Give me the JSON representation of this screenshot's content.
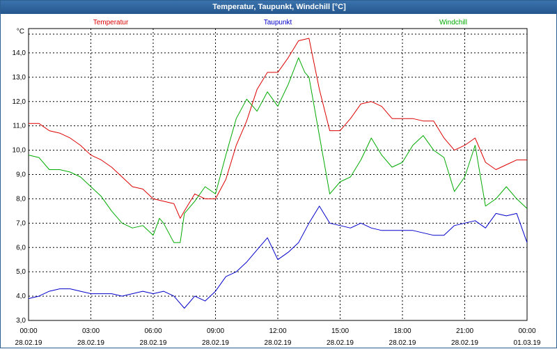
{
  "window": {
    "title": "Temperatur, Taupunkt, Windchill [°C]"
  },
  "colors": {
    "temperatur": "#dd0000",
    "taupunkt": "#0000cc",
    "windchill": "#00aa00"
  },
  "chart_data": {
    "type": "line",
    "title": "Temperatur, Taupunkt, Windchill [°C]",
    "ylabel": "°C",
    "xlabel": "",
    "ylim": [
      3.0,
      15.0
    ],
    "xlim": [
      0,
      24
    ],
    "grid": true,
    "legend_position": "top",
    "yticks": [
      "3,0",
      "4,0",
      "5,0",
      "6,0",
      "7,0",
      "8,0",
      "9,0",
      "10,0",
      "11,0",
      "12,0",
      "13,0",
      "14,0"
    ],
    "xticks": [
      {
        "time": "00:00",
        "date": "28.02.19"
      },
      {
        "time": "03:00",
        "date": "28.02.19"
      },
      {
        "time": "06:00",
        "date": "28.02.19"
      },
      {
        "time": "09:00",
        "date": "28.02.19"
      },
      {
        "time": "12:00",
        "date": "28.02.19"
      },
      {
        "time": "15:00",
        "date": "28.02.19"
      },
      {
        "time": "18:00",
        "date": "28.02.19"
      },
      {
        "time": "21:00",
        "date": "28.02.19"
      },
      {
        "time": "00:00",
        "date": "01.03.19"
      }
    ],
    "series": [
      {
        "name": "Temperatur",
        "x": [
          0,
          0.5,
          1,
          1.5,
          2,
          2.5,
          3,
          3.5,
          4,
          4.5,
          5,
          5.5,
          6,
          6.5,
          7,
          7.3,
          7.5,
          8,
          8.5,
          9,
          9.5,
          10,
          10.5,
          11,
          11.5,
          12,
          12.5,
          13,
          13.5,
          14,
          14.5,
          15,
          15.5,
          16,
          16.5,
          17,
          17.5,
          18,
          18.5,
          19,
          19.5,
          20,
          20.5,
          21,
          21.5,
          22,
          22.5,
          23,
          23.5,
          24
        ],
        "values": [
          11.1,
          11.1,
          10.8,
          10.7,
          10.5,
          10.2,
          9.8,
          9.6,
          9.3,
          8.9,
          8.5,
          8.4,
          8.0,
          7.9,
          7.8,
          7.2,
          7.5,
          8.2,
          8.0,
          8.0,
          8.8,
          10.2,
          11.2,
          12.5,
          13.2,
          13.2,
          13.8,
          14.5,
          14.6,
          12.5,
          10.8,
          10.8,
          11.3,
          11.9,
          12.0,
          11.8,
          11.3,
          11.3,
          11.3,
          11.2,
          11.2,
          10.5,
          10.0,
          10.2,
          10.5,
          9.5,
          9.2,
          9.4,
          9.6,
          9.6
        ]
      },
      {
        "name": "Taupunkt",
        "x": [
          0,
          0.5,
          1,
          1.5,
          2,
          2.5,
          3,
          3.5,
          4,
          4.5,
          5,
          5.5,
          6,
          6.5,
          7,
          7.5,
          8,
          8.5,
          9,
          9.5,
          10,
          10.5,
          11,
          11.5,
          12,
          12.5,
          13,
          13.5,
          14,
          14.5,
          15,
          15.5,
          16,
          16.5,
          17,
          17.5,
          18,
          18.5,
          19,
          19.5,
          20,
          20.5,
          21,
          21.5,
          22,
          22.5,
          23,
          23.5,
          24
        ],
        "values": [
          3.9,
          4.0,
          4.2,
          4.3,
          4.3,
          4.2,
          4.1,
          4.1,
          4.1,
          4.0,
          4.1,
          4.2,
          4.1,
          4.2,
          4.0,
          3.5,
          4.0,
          3.8,
          4.2,
          4.8,
          5.0,
          5.4,
          5.9,
          6.4,
          5.5,
          5.8,
          6.2,
          7.0,
          7.7,
          7.0,
          6.9,
          6.8,
          7.0,
          6.8,
          6.7,
          6.7,
          6.7,
          6.7,
          6.6,
          6.5,
          6.5,
          6.9,
          7.0,
          7.1,
          6.8,
          7.4,
          7.3,
          7.4,
          6.2
        ]
      },
      {
        "name": "Windchill",
        "x": [
          0,
          0.5,
          1,
          1.5,
          2,
          2.5,
          3,
          3.5,
          4,
          4.5,
          5,
          5.5,
          6,
          6.3,
          6.5,
          7,
          7.3,
          7.5,
          8,
          8.5,
          9,
          9.5,
          10,
          10.5,
          11,
          11.5,
          12,
          12.5,
          13,
          13.3,
          13.5,
          14,
          14.5,
          15,
          15.5,
          16,
          16.5,
          17,
          17.5,
          18,
          18.5,
          19,
          19.5,
          20,
          20.5,
          21,
          21.5,
          22,
          22.5,
          23,
          23.5,
          24
        ],
        "values": [
          9.8,
          9.7,
          9.2,
          9.2,
          9.1,
          8.9,
          8.5,
          8.1,
          7.5,
          7.0,
          6.8,
          6.9,
          6.5,
          7.2,
          7.0,
          6.2,
          6.2,
          7.4,
          7.9,
          8.5,
          8.2,
          9.8,
          11.3,
          12.1,
          11.6,
          12.4,
          11.8,
          12.7,
          13.8,
          13.2,
          13.0,
          10.6,
          8.2,
          8.7,
          8.9,
          9.6,
          10.5,
          9.8,
          9.3,
          9.5,
          10.2,
          10.6,
          10.0,
          9.7,
          8.3,
          8.9,
          10.2,
          7.7,
          8.0,
          8.5,
          8.0,
          7.6
        ]
      }
    ]
  }
}
